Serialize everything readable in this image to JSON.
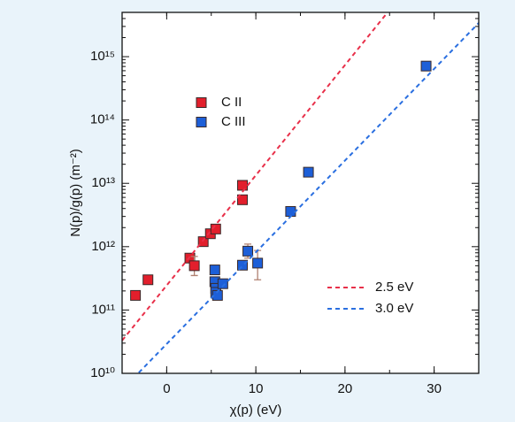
{
  "chart_data": {
    "type": "scatter",
    "xlabel": "χ(p) (eV)",
    "ylabel": "N(p)/g(p) (m⁻²)",
    "xlim": [
      -5,
      35
    ],
    "xticks": [
      0,
      10,
      20,
      30
    ],
    "ylim": [
      10000000000.0,
      5000000000000000.0
    ],
    "yscale": "log",
    "yticks": [
      {
        "value": 10000000000.0,
        "label": "10¹⁰"
      },
      {
        "value": 100000000000.0,
        "label": "10¹¹"
      },
      {
        "value": 1000000000000.0,
        "label": "10¹²"
      },
      {
        "value": 10000000000000.0,
        "label": "10¹³"
      },
      {
        "value": 100000000000000.0,
        "label": "10¹⁴"
      },
      {
        "value": 1000000000000000.0,
        "label": "10¹⁵"
      }
    ],
    "series": [
      {
        "name": "C II",
        "kind": "marker",
        "color": "#e21f2c",
        "x": [
          -3.5,
          -2.1,
          2.6,
          3.1,
          4.1,
          4.9,
          5.5,
          8.5,
          8.5
        ],
        "values": [
          170000000000.0,
          300000000000.0,
          660000000000.0,
          500000000000.0,
          1200000000000.0,
          1600000000000.0,
          1900000000000.0,
          5500000000000.0,
          9300000000000.0
        ],
        "error_low": [
          null,
          null,
          null,
          350000000000.0,
          null,
          null,
          null,
          null,
          null
        ],
        "error_high": [
          null,
          null,
          null,
          700000000000.0,
          null,
          null,
          null,
          null,
          null
        ]
      },
      {
        "name": "C III",
        "kind": "marker",
        "color": "#1d5fd8",
        "x": [
          5.4,
          5.4,
          5.5,
          5.5,
          5.7,
          6.3,
          8.5,
          9.1,
          10.2,
          13.9,
          15.9,
          29.1
        ],
        "values": [
          430000000000.0,
          280000000000.0,
          220000000000.0,
          190000000000.0,
          170000000000.0,
          260000000000.0,
          510000000000.0,
          850000000000.0,
          550000000000.0,
          3600000000000.0,
          15000000000000.0,
          710000000000000.0
        ],
        "error_low": [
          null,
          null,
          null,
          null,
          null,
          null,
          null,
          660000000000.0,
          300000000000.0,
          null,
          null,
          null
        ],
        "error_high": [
          null,
          null,
          null,
          null,
          null,
          null,
          null,
          1100000000000.0,
          870000000000.0,
          null,
          null,
          null
        ]
      },
      {
        "name": "2.5 eV",
        "kind": "dashed-line",
        "color": "#e8304a",
        "x": [
          -5,
          35
        ],
        "values": [
          33000000000.0,
          3e+17
        ]
      },
      {
        "name": "3.0 eV",
        "kind": "dashed-line",
        "color": "#2a6fe0",
        "x": [
          -5,
          35
        ],
        "values": [
          5500000000.0,
          3400000000000000.0
        ]
      }
    ]
  }
}
